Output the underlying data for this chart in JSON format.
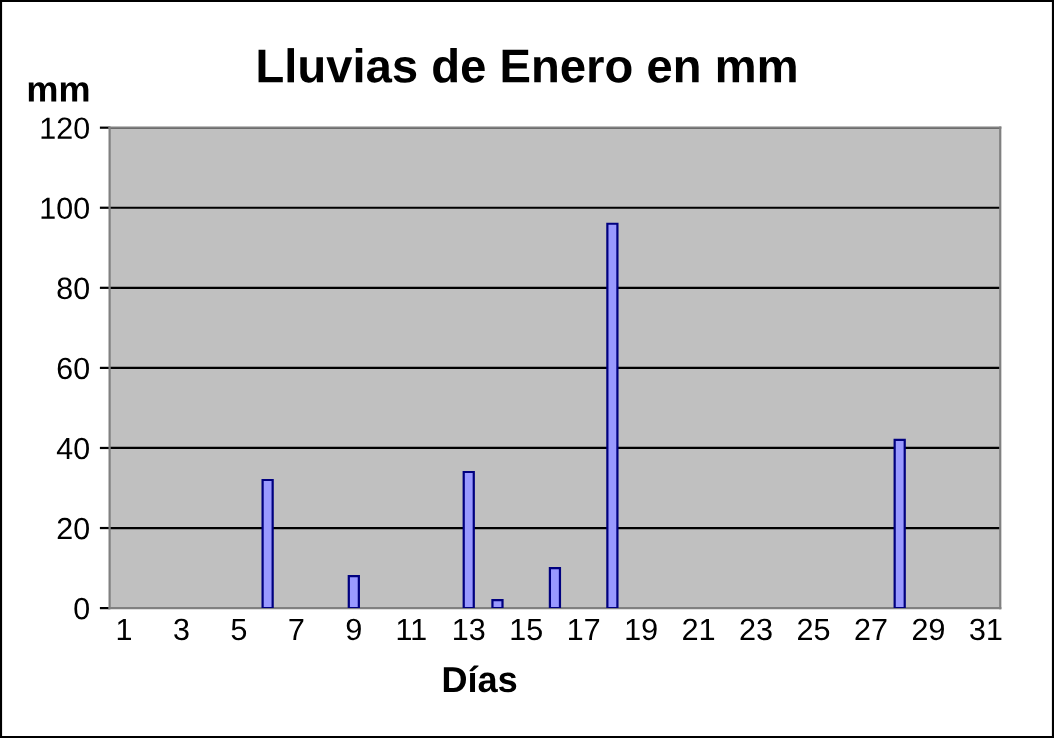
{
  "chart_data": {
    "type": "bar",
    "title": "Lluvias de Enero en mm",
    "xlabel": "Días",
    "ylabel": "mm",
    "categories": [
      "1",
      null,
      "3",
      null,
      "5",
      null,
      "7",
      null,
      "9",
      null,
      "11",
      null,
      "13",
      null,
      "15",
      null,
      "17",
      null,
      "19",
      null,
      "21",
      null,
      "23",
      null,
      "25",
      null,
      "27",
      null,
      "29",
      null,
      "31"
    ],
    "values": [
      null,
      null,
      null,
      null,
      null,
      32,
      null,
      null,
      8,
      null,
      null,
      null,
      34,
      2,
      null,
      10,
      null,
      96,
      null,
      null,
      null,
      null,
      null,
      null,
      null,
      null,
      null,
      42,
      null,
      null,
      null
    ],
    "color": "#9999ff",
    "ylim": [
      0,
      120
    ],
    "yticks": [
      0,
      20,
      40,
      60,
      80,
      100,
      120
    ],
    "grid": "y",
    "legend": false
  }
}
